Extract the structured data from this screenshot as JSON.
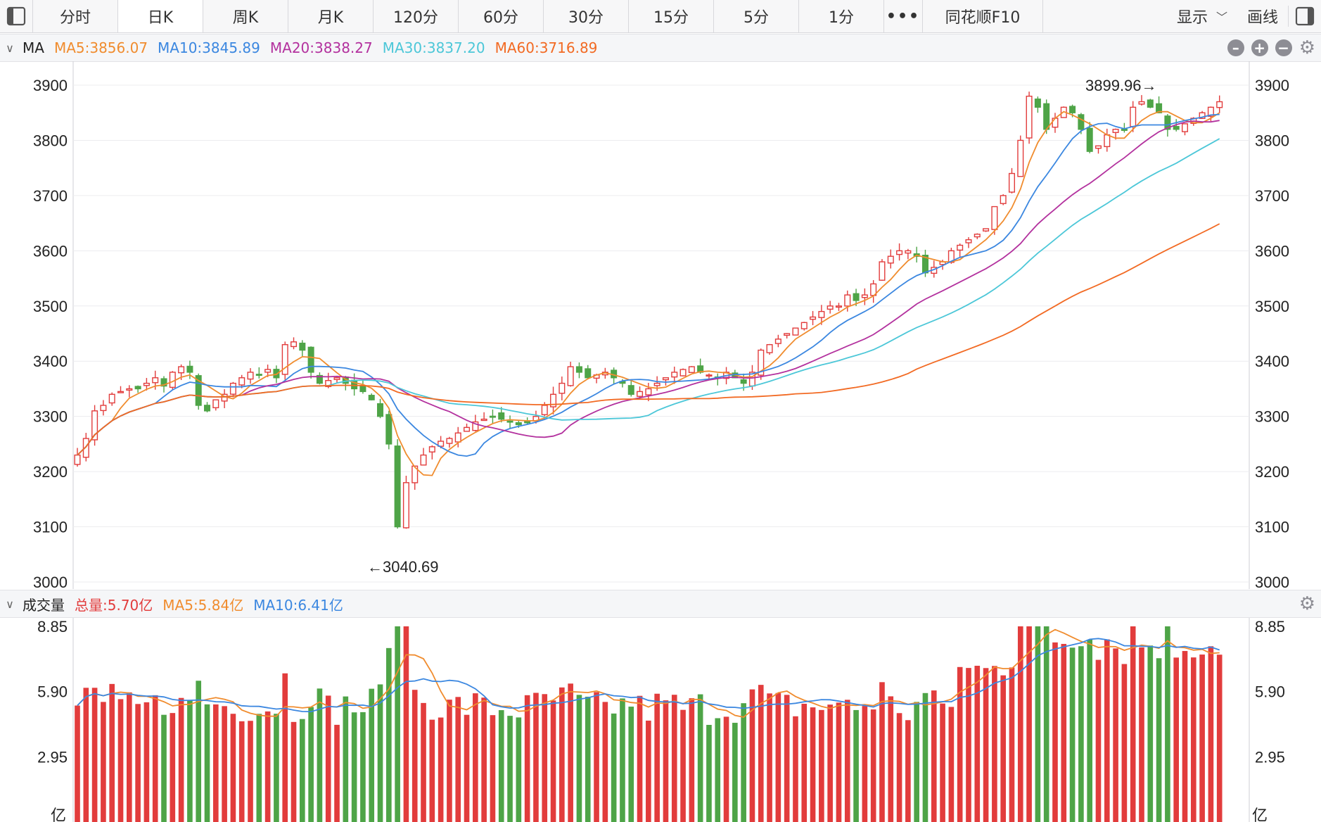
{
  "toolbar": {
    "tabs": [
      "分时",
      "日K",
      "周K",
      "月K",
      "120分",
      "60分",
      "30分",
      "15分",
      "5分",
      "1分"
    ],
    "active_tab": "日K",
    "more_label": "•••",
    "f10_label": "同花顺F10",
    "display_label": "显示",
    "draw_label": "画线"
  },
  "ma_panel": {
    "name": "MA",
    "ma5": "MA5:3856.07",
    "ma10": "MA10:3845.89",
    "ma20": "MA20:3838.27",
    "ma30": "MA30:3837.20",
    "ma60": "MA60:3716.89",
    "high_marker": "3899.96→",
    "low_marker": "←3040.69"
  },
  "vol_panel": {
    "name": "成交量",
    "total": "总量:5.70亿",
    "ma5": "MA5:5.84亿",
    "ma10": "MA10:6.41亿",
    "unit": "亿"
  },
  "colors": {
    "up": "#e23c3c",
    "down": "#4ea447",
    "ma5": "#f08c2e",
    "ma10": "#3b87e0",
    "ma20": "#b3319e",
    "ma30": "#4cc7d8",
    "ma60": "#f26a23"
  },
  "chart_data": [
    {
      "type": "candlestick",
      "ylim": [
        3000,
        3900
      ],
      "yticks": [
        3900,
        3800,
        3700,
        3600,
        3500,
        3400,
        3300,
        3200,
        3100,
        3000
      ],
      "high": 3899.96,
      "low": 3040.69,
      "ma_last": {
        "MA5": 3856.07,
        "MA10": 3845.89,
        "MA20": 3838.27,
        "MA30": 3837.2,
        "MA60": 3716.89
      },
      "close_trend": [
        3230,
        3260,
        3310,
        3320,
        3340,
        3345,
        3350,
        3350,
        3360,
        3370,
        3355,
        3380,
        3390,
        3380,
        3320,
        3310,
        3330,
        3340,
        3360,
        3370,
        3380,
        3375,
        3385,
        3370,
        3430,
        3435,
        3420,
        3380,
        3360,
        3365,
        3370,
        3360,
        3350,
        3345,
        3330,
        3300,
        3250,
        3100,
        3180,
        3210,
        3230,
        3245,
        3255,
        3260,
        3270,
        3280,
        3290,
        3295,
        3300,
        3295,
        3290,
        3285,
        3290,
        3300,
        3320,
        3340,
        3360,
        3390,
        3380,
        3370,
        3375,
        3380,
        3370,
        3360,
        3340,
        3345,
        3350,
        3360,
        3370,
        3380,
        3385,
        3390,
        3380,
        3375,
        3370,
        3380,
        3370,
        3360,
        3380,
        3420,
        3430,
        3440,
        3450,
        3460,
        3470,
        3480,
        3490,
        3500,
        3500,
        3520,
        3510,
        3520,
        3540,
        3580,
        3590,
        3600,
        3600,
        3590,
        3560,
        3570,
        3580,
        3600,
        3610,
        3620,
        3630,
        3640,
        3680,
        3700,
        3740,
        3800,
        3880,
        3860,
        3820,
        3840,
        3860,
        3850,
        3820,
        3780,
        3790,
        3810,
        3820,
        3820,
        3860,
        3870,
        3860,
        3850,
        3820,
        3820,
        3830,
        3840,
        3850,
        3860,
        3870
      ]
    },
    {
      "type": "bar",
      "title": "成交量",
      "unit": "亿",
      "ylim": [
        0,
        8.85
      ],
      "yticks": [
        8.85,
        5.9,
        2.95
      ],
      "last_total": 5.7,
      "ma5_last": 5.84,
      "ma10_last": 6.41
    }
  ]
}
